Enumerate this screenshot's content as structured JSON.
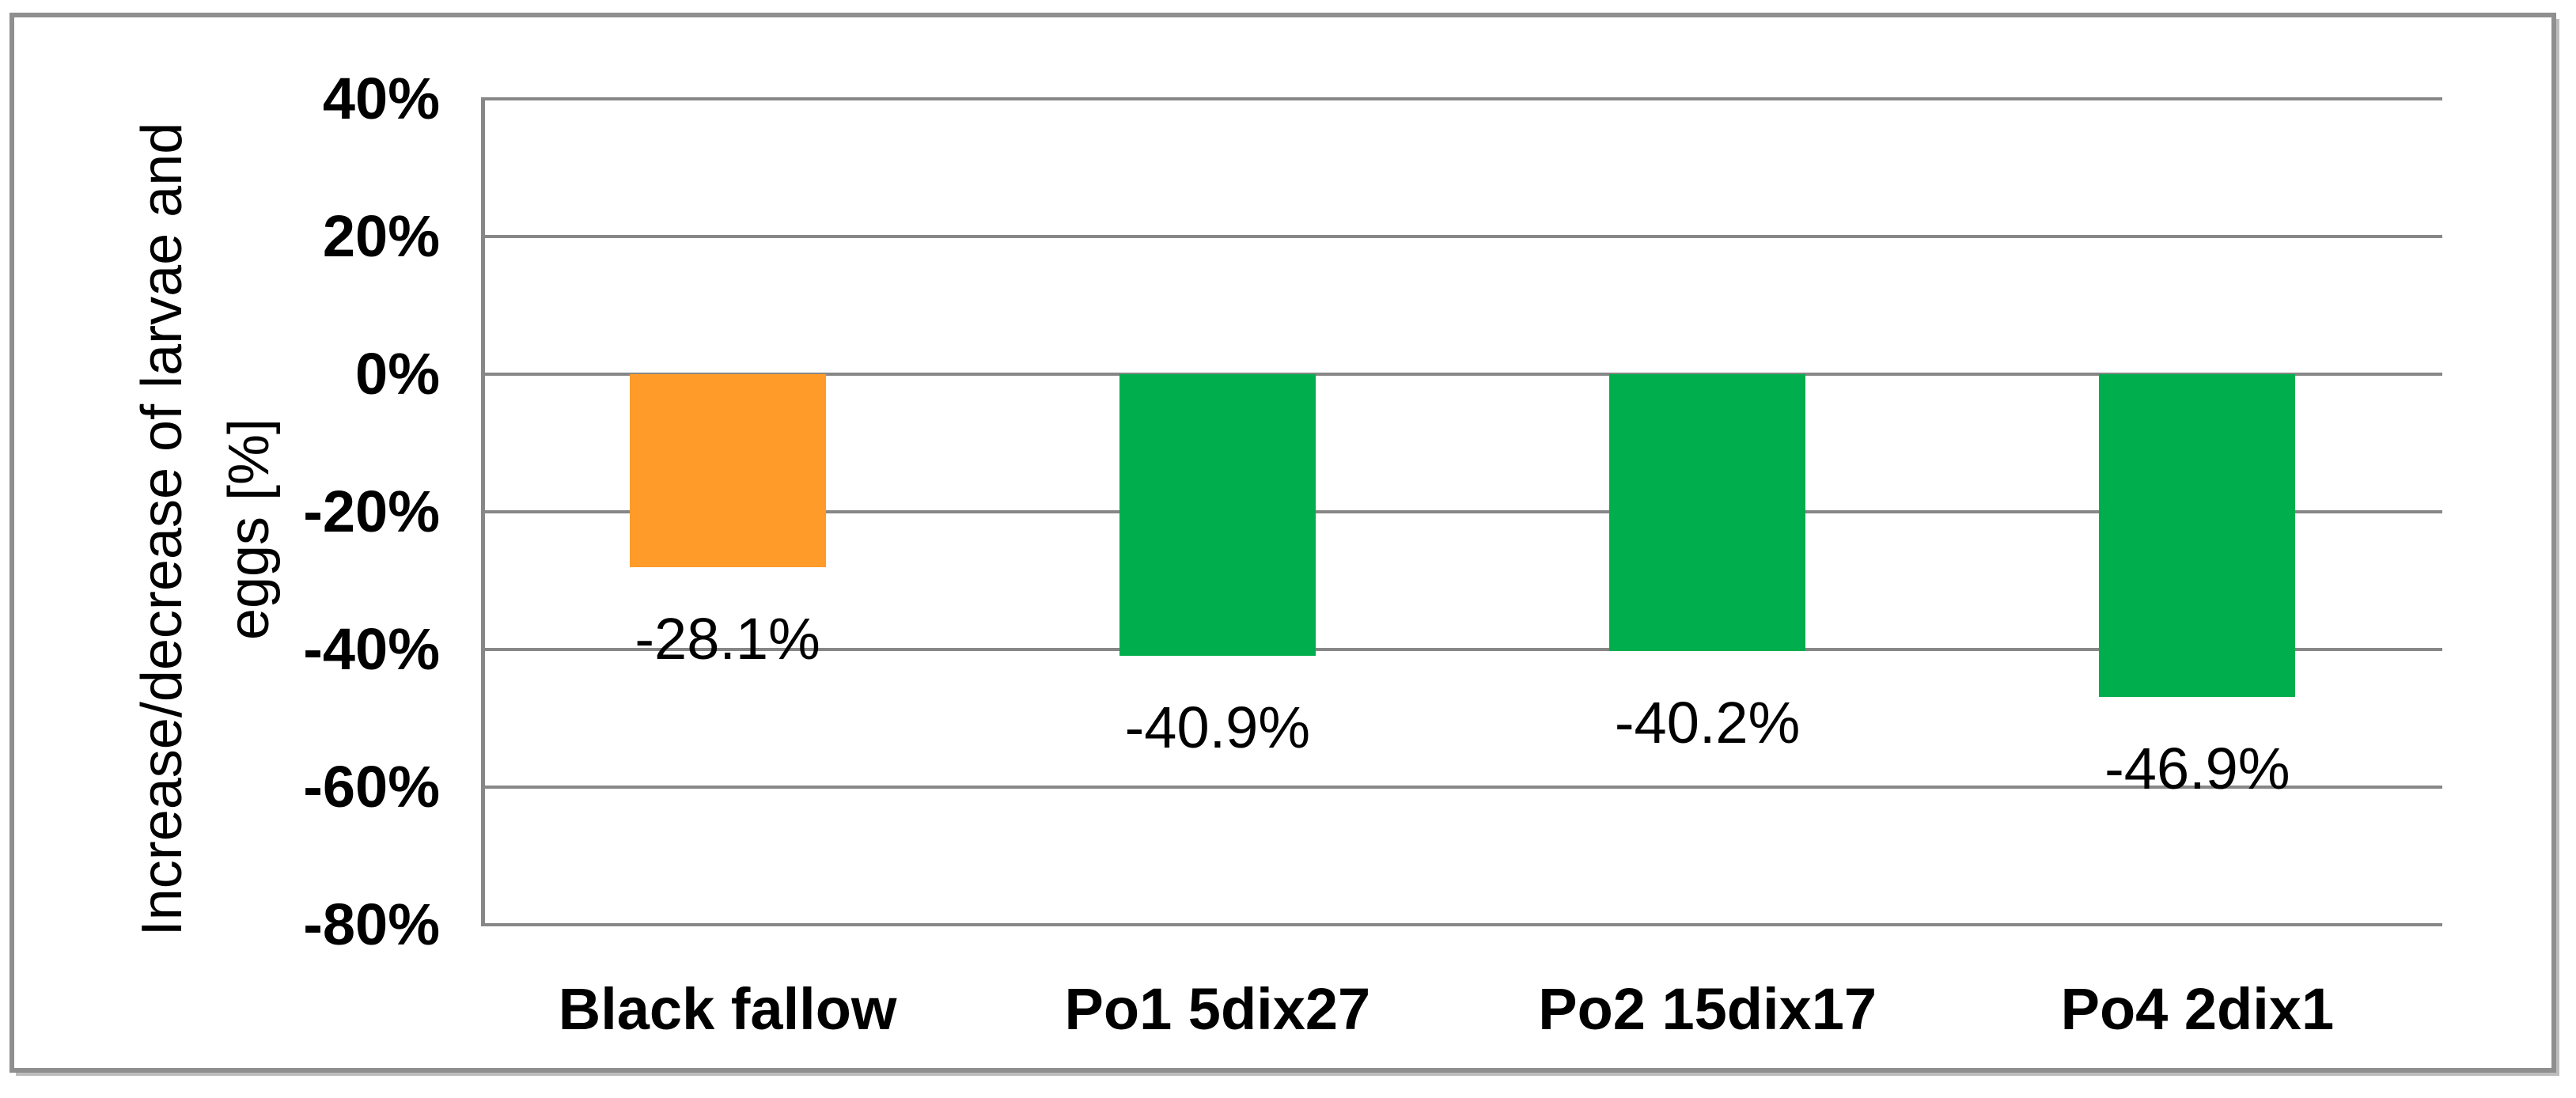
{
  "chart_data": {
    "type": "bar",
    "title": "",
    "ylabel": "Increase/decrease of larvae and eggs [%]",
    "ylabel_lines": [
      "Increase/decrease of larvae and",
      "eggs [%]"
    ],
    "categories": [
      "Black fallow",
      "Po1 5dix27",
      "Po2 15dix17",
      "Po4 2dix1"
    ],
    "values": [
      -28.1,
      -40.9,
      -40.2,
      -46.9
    ],
    "data_labels": [
      "-28.1%",
      "-40.9%",
      "-40.2%",
      "-46.9%"
    ],
    "bar_colors": [
      "#FF9B29",
      "#00AE4D",
      "#00AE4D",
      "#00AE4D"
    ],
    "y_ticks": [
      {
        "label": "40%",
        "value": 40
      },
      {
        "label": "20%",
        "value": 20
      },
      {
        "label": "0%",
        "value": 0
      },
      {
        "label": "-20%",
        "value": -20
      },
      {
        "label": "-40%",
        "value": -40
      },
      {
        "label": "-60%",
        "value": -60
      },
      {
        "label": "-80%",
        "value": -80
      }
    ],
    "ylim": [
      -80,
      40
    ],
    "xlabel": "",
    "grid": true,
    "legend": "none",
    "colors": {
      "orange_series": "#FF9B29",
      "green_series": "#00AE4D",
      "gridline": "#878787",
      "axis_line": "#878787",
      "frame_border": "#8F8F8F",
      "text": "#000000",
      "background": "#FFFFFF"
    }
  }
}
